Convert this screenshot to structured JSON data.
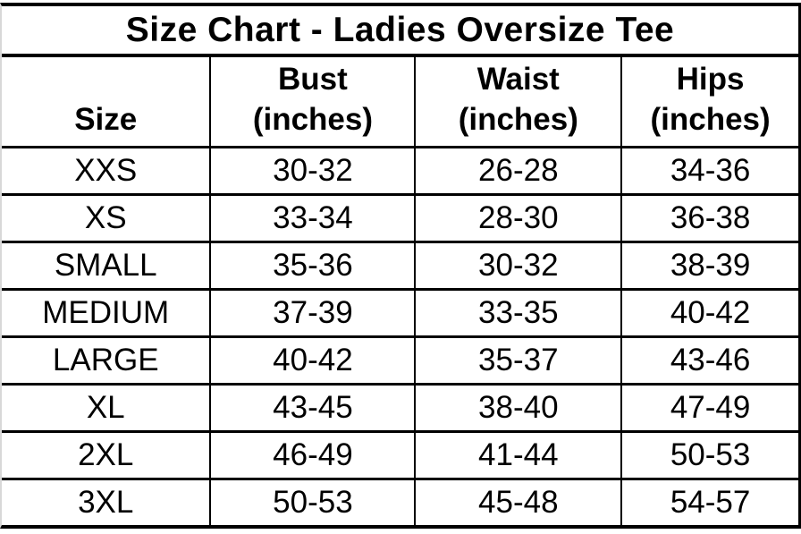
{
  "chart_data": {
    "type": "table",
    "title": "Size Chart - Ladies Oversize Tee",
    "columns": [
      {
        "label": "Size",
        "unit": ""
      },
      {
        "label": "Bust",
        "unit": "(inches)"
      },
      {
        "label": "Waist",
        "unit": "(inches)"
      },
      {
        "label": "Hips",
        "unit": "(inches)"
      }
    ],
    "rows": [
      [
        "XXS",
        "30-32",
        "26-28",
        "34-36"
      ],
      [
        "XS",
        "33-34",
        "28-30",
        "36-38"
      ],
      [
        "SMALL",
        "35-36",
        "30-32",
        "38-39"
      ],
      [
        "MEDIUM",
        "37-39",
        "33-35",
        "40-42"
      ],
      [
        "LARGE",
        "40-42",
        "35-37",
        "43-46"
      ],
      [
        "XL",
        "43-45",
        "38-40",
        "47-49"
      ],
      [
        "2XL",
        "46-49",
        "41-44",
        "50-53"
      ],
      [
        "3XL",
        "50-53",
        "45-48",
        "54-57"
      ]
    ],
    "layout_hints": {
      "grid": "full black rules between all header/data cells",
      "title_row_spans_all_columns": true
    }
  },
  "colors": {
    "background": "#ffffff",
    "text": "#000000",
    "border": "#000000",
    "left_edge": "#d8d8d8"
  }
}
